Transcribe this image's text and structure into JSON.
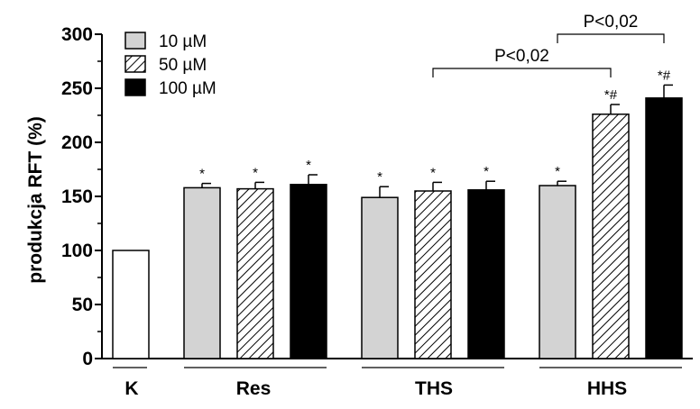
{
  "chart_data": {
    "type": "bar",
    "title": "",
    "xlabel": "",
    "ylabel": "produkcja RFT (%)",
    "ylim": [
      0,
      300
    ],
    "yticks": [
      0,
      50,
      100,
      150,
      200,
      250,
      300
    ],
    "groups": [
      "K",
      "Res",
      "THS",
      "HHS"
    ],
    "legend": {
      "placement": "top-left",
      "entries": [
        {
          "label": "10 µM",
          "fill": "gray"
        },
        {
          "label": "50 µM",
          "fill": "hatched"
        },
        {
          "label": "100 µM",
          "fill": "black"
        }
      ]
    },
    "series": [
      {
        "name": "K",
        "group": "K",
        "style": "white",
        "value": 100,
        "error": 0,
        "annotation": ""
      },
      {
        "name": "10 µM",
        "group": "Res",
        "style": "gray",
        "value": 158,
        "error": 4,
        "annotation": "*"
      },
      {
        "name": "50 µM",
        "group": "Res",
        "style": "hatched",
        "value": 157,
        "error": 6,
        "annotation": "*"
      },
      {
        "name": "100 µM",
        "group": "Res",
        "style": "black",
        "value": 161,
        "error": 9,
        "annotation": "*"
      },
      {
        "name": "10 µM",
        "group": "THS",
        "style": "gray",
        "value": 149,
        "error": 10,
        "annotation": "*"
      },
      {
        "name": "50 µM",
        "group": "THS",
        "style": "hatched",
        "value": 155,
        "error": 8,
        "annotation": "*"
      },
      {
        "name": "100 µM",
        "group": "THS",
        "style": "black",
        "value": 156,
        "error": 8,
        "annotation": "*"
      },
      {
        "name": "10 µM",
        "group": "HHS",
        "style": "gray",
        "value": 160,
        "error": 4,
        "annotation": "*"
      },
      {
        "name": "50 µM",
        "group": "HHS",
        "style": "hatched",
        "value": 226,
        "error": 9,
        "annotation": "*#"
      },
      {
        "name": "100 µM",
        "group": "HHS",
        "style": "black",
        "value": 241,
        "error": 12,
        "annotation": "*#"
      }
    ],
    "brackets": [
      {
        "from_bar": 5,
        "to_bar": 8,
        "label": "P<0,02"
      },
      {
        "from_bar": 7,
        "to_bar": 9,
        "label": "P<0,02"
      }
    ],
    "colors": {
      "gray": "#d3d3d3",
      "black": "#000000",
      "white": "#ffffff",
      "axis": "#000000"
    }
  }
}
